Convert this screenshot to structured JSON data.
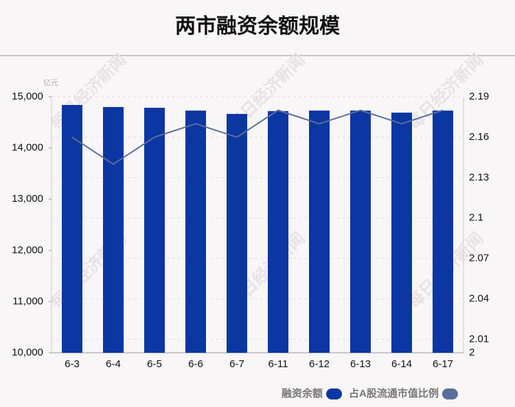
{
  "chart_data": {
    "type": "bar_line",
    "title": "两市融资余额规模",
    "y_unit": "亿元",
    "watermark": "每日经济新闻",
    "categories": [
      "6-3",
      "6-4",
      "6-5",
      "6-6",
      "6-7",
      "6-11",
      "6-12",
      "6-13",
      "6-14",
      "6-17"
    ],
    "series": [
      {
        "name": "融资余额",
        "type": "bar",
        "color": "#0c36a1",
        "values": [
          14840,
          14800,
          14785,
          14730,
          14665,
          14720,
          14730,
          14730,
          14690,
          14730
        ]
      },
      {
        "name": "占A股流通市值比例",
        "type": "line",
        "axis": "y2",
        "color": "#5a6e9c",
        "values": [
          2.16,
          2.14,
          2.16,
          2.17,
          2.16,
          2.18,
          2.17,
          2.18,
          2.17,
          2.18
        ]
      }
    ],
    "ylim": [
      10000,
      15000
    ],
    "yticks": [
      {
        "value": 10000,
        "label": "10,000"
      },
      {
        "value": 11000,
        "label": "11,000"
      },
      {
        "value": 12000,
        "label": "12,000"
      },
      {
        "value": 13000,
        "label": "13,000"
      },
      {
        "value": 14000,
        "label": "14,000"
      },
      {
        "value": 15000,
        "label": "15,000"
      }
    ],
    "y2lim": [
      2,
      2.19
    ],
    "y2ticks": [
      2,
      2.01,
      2.04,
      2.07,
      2.1,
      2.13,
      2.16,
      2.19
    ],
    "grid": true,
    "legend": "bottom-right"
  }
}
